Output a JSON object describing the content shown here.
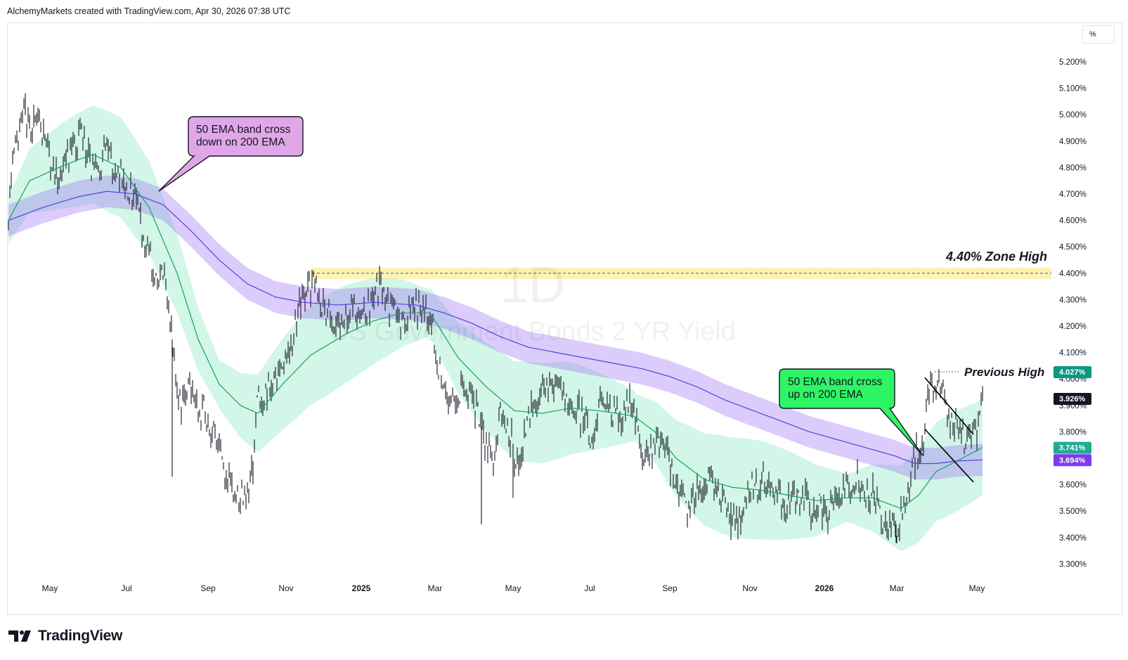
{
  "attribution": "AlchemyMarkets created with TradingView.com, Apr 30, 2026 07:38 UTC",
  "logo_text": "TradingView",
  "unit_label": "%",
  "chart_data": {
    "type": "bar",
    "watermark": {
      "interval": "1D",
      "symbol": "US Government Bonds 2 YR Yield"
    },
    "y_axis": {
      "ticks": [
        "5.200%",
        "5.100%",
        "5.000%",
        "4.900%",
        "4.800%",
        "4.700%",
        "4.600%",
        "4.500%",
        "4.400%",
        "4.300%",
        "4.200%",
        "4.100%",
        "4.000%",
        "3.900%",
        "3.800%",
        "3.700%",
        "3.600%",
        "3.500%",
        "3.400%",
        "3.300%"
      ],
      "ylim": [
        3.25,
        5.3
      ]
    },
    "x_axis": {
      "ticks": [
        "May",
        "Jul",
        "Sep",
        "Nov",
        "2025",
        "Mar",
        "May",
        "Jul",
        "Sep",
        "Nov",
        "2026",
        "Mar",
        "May"
      ],
      "bold_ticks": [
        "2025",
        "2026"
      ]
    },
    "price_labels": [
      {
        "text": "4.027%",
        "value": 4.027,
        "color": "#089981"
      },
      {
        "text": "3.926%",
        "value": 3.926,
        "color": "#131722"
      },
      {
        "text": "3.741%",
        "value": 3.741,
        "color": "#22ab94"
      },
      {
        "text": "3.694%",
        "value": 3.694,
        "color": "#7c3aed"
      }
    ],
    "zone": {
      "label": "4.40% Zone High",
      "value": 4.4,
      "color": "#fff3b0"
    },
    "previous_high": {
      "label": "Previous High",
      "value": 4.027
    },
    "annotations": [
      {
        "lines": [
          "50 EMA band cross",
          "down on 200 EMA"
        ],
        "color": "#e1a6e8"
      },
      {
        "lines": [
          "50 EMA band cross",
          "up on 200 EMA"
        ],
        "color": "#2ef565"
      }
    ],
    "series": [
      {
        "name": "Price",
        "anchors": [
          [
            0,
            4.62
          ],
          [
            10,
            4.88
          ],
          [
            22,
            4.98
          ],
          [
            42,
            4.95
          ],
          [
            55,
            4.88
          ],
          [
            65,
            4.76
          ],
          [
            80,
            4.8
          ],
          [
            105,
            4.96
          ],
          [
            120,
            4.78
          ],
          [
            140,
            4.86
          ],
          [
            162,
            4.75
          ],
          [
            180,
            4.7
          ],
          [
            195,
            4.52
          ],
          [
            210,
            4.38
          ],
          [
            225,
            4.35
          ],
          [
            235,
            4.1
          ],
          [
            240,
            3.9
          ],
          [
            255,
            3.98
          ],
          [
            270,
            3.9
          ],
          [
            290,
            3.8
          ],
          [
            310,
            3.62
          ],
          [
            330,
            3.55
          ],
          [
            345,
            3.6
          ],
          [
            355,
            3.92
          ],
          [
            375,
            3.98
          ],
          [
            395,
            4.05
          ],
          [
            410,
            4.22
          ],
          [
            425,
            4.35
          ],
          [
            440,
            4.32
          ],
          [
            465,
            4.2
          ],
          [
            490,
            4.27
          ],
          [
            510,
            4.25
          ],
          [
            525,
            4.35
          ],
          [
            540,
            4.3
          ],
          [
            560,
            4.23
          ],
          [
            580,
            4.27
          ],
          [
            600,
            4.24
          ],
          [
            610,
            4.05
          ],
          [
            625,
            3.92
          ],
          [
            640,
            3.95
          ],
          [
            660,
            3.94
          ],
          [
            675,
            3.8
          ],
          [
            690,
            3.68
          ],
          [
            700,
            3.88
          ],
          [
            715,
            3.8
          ],
          [
            725,
            3.65
          ],
          [
            740,
            3.85
          ],
          [
            760,
            3.98
          ],
          [
            780,
            3.96
          ],
          [
            800,
            3.9
          ],
          [
            815,
            3.88
          ],
          [
            830,
            3.78
          ],
          [
            845,
            3.9
          ],
          [
            870,
            3.85
          ],
          [
            890,
            3.92
          ],
          [
            900,
            3.7
          ],
          [
            915,
            3.73
          ],
          [
            930,
            3.78
          ],
          [
            945,
            3.63
          ],
          [
            960,
            3.52
          ],
          [
            980,
            3.55
          ],
          [
            1000,
            3.62
          ],
          [
            1020,
            3.55
          ],
          [
            1040,
            3.45
          ],
          [
            1060,
            3.6
          ],
          [
            1075,
            3.62
          ],
          [
            1090,
            3.58
          ],
          [
            1105,
            3.52
          ],
          [
            1125,
            3.56
          ],
          [
            1145,
            3.5
          ],
          [
            1165,
            3.52
          ],
          [
            1185,
            3.55
          ],
          [
            1205,
            3.62
          ],
          [
            1225,
            3.57
          ],
          [
            1240,
            3.5
          ],
          [
            1255,
            3.44
          ],
          [
            1270,
            3.46
          ],
          [
            1280,
            3.58
          ],
          [
            1292,
            3.7
          ],
          [
            1302,
            3.78
          ],
          [
            1312,
            3.95
          ],
          [
            1320,
            4.0
          ],
          [
            1330,
            3.92
          ],
          [
            1340,
            3.83
          ],
          [
            1350,
            3.82
          ],
          [
            1362,
            3.78
          ],
          [
            1372,
            3.8
          ],
          [
            1380,
            3.82
          ],
          [
            1386,
            3.926
          ]
        ]
      },
      {
        "name": "Fast EMA",
        "anchors": [
          [
            0,
            4.6
          ],
          [
            30,
            4.75
          ],
          [
            80,
            4.81
          ],
          [
            120,
            4.85
          ],
          [
            160,
            4.8
          ],
          [
            200,
            4.65
          ],
          [
            240,
            4.4
          ],
          [
            270,
            4.15
          ],
          [
            300,
            3.98
          ],
          [
            330,
            3.9
          ],
          [
            355,
            3.87
          ],
          [
            390,
            3.98
          ],
          [
            430,
            4.09
          ],
          [
            480,
            4.17
          ],
          [
            520,
            4.22
          ],
          [
            560,
            4.25
          ],
          [
            600,
            4.25
          ],
          [
            640,
            4.08
          ],
          [
            680,
            3.97
          ],
          [
            720,
            3.88
          ],
          [
            760,
            3.87
          ],
          [
            800,
            3.89
          ],
          [
            840,
            3.88
          ],
          [
            890,
            3.86
          ],
          [
            920,
            3.8
          ],
          [
            950,
            3.7
          ],
          [
            990,
            3.62
          ],
          [
            1030,
            3.59
          ],
          [
            1070,
            3.58
          ],
          [
            1110,
            3.56
          ],
          [
            1150,
            3.54
          ],
          [
            1190,
            3.55
          ],
          [
            1230,
            3.55
          ],
          [
            1270,
            3.51
          ],
          [
            1295,
            3.56
          ],
          [
            1320,
            3.65
          ],
          [
            1350,
            3.69
          ],
          [
            1386,
            3.741
          ]
        ]
      },
      {
        "name": "Slow EMA",
        "anchors": [
          [
            0,
            4.6
          ],
          [
            50,
            4.65
          ],
          [
            100,
            4.69
          ],
          [
            140,
            4.71
          ],
          [
            180,
            4.7
          ],
          [
            220,
            4.66
          ],
          [
            260,
            4.56
          ],
          [
            300,
            4.45
          ],
          [
            340,
            4.36
          ],
          [
            380,
            4.31
          ],
          [
            420,
            4.29
          ],
          [
            470,
            4.28
          ],
          [
            520,
            4.29
          ],
          [
            580,
            4.28
          ],
          [
            620,
            4.25
          ],
          [
            660,
            4.21
          ],
          [
            700,
            4.16
          ],
          [
            740,
            4.12
          ],
          [
            780,
            4.1
          ],
          [
            820,
            4.08
          ],
          [
            860,
            4.06
          ],
          [
            900,
            4.04
          ],
          [
            940,
            4.01
          ],
          [
            980,
            3.97
          ],
          [
            1020,
            3.92
          ],
          [
            1060,
            3.88
          ],
          [
            1100,
            3.84
          ],
          [
            1140,
            3.8
          ],
          [
            1180,
            3.77
          ],
          [
            1220,
            3.74
          ],
          [
            1260,
            3.71
          ],
          [
            1290,
            3.68
          ],
          [
            1320,
            3.68
          ],
          [
            1350,
            3.69
          ],
          [
            1386,
            3.694
          ]
        ]
      }
    ]
  }
}
